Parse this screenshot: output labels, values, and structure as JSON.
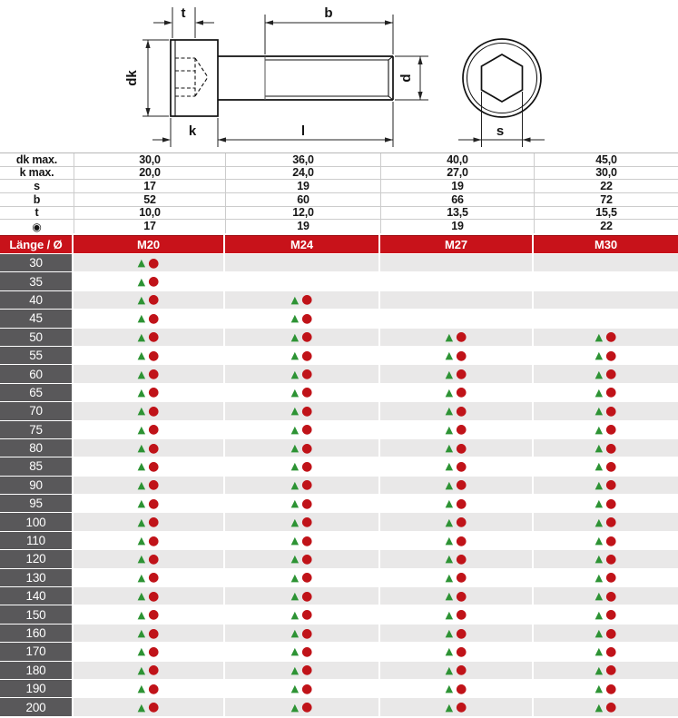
{
  "drawing": {
    "labels": {
      "t": "t",
      "b": "b",
      "dk": "dk",
      "k": "k",
      "l": "l",
      "d": "d",
      "s": "s"
    }
  },
  "dimension_table": {
    "rows": [
      {
        "label": "dk max.",
        "values": [
          "30,0",
          "36,0",
          "40,0",
          "45,0"
        ]
      },
      {
        "label": "k max.",
        "values": [
          "20,0",
          "24,0",
          "27,0",
          "30,0"
        ]
      },
      {
        "label": "s",
        "values": [
          "17",
          "19",
          "19",
          "22"
        ]
      },
      {
        "label": "b",
        "values": [
          "52",
          "60",
          "66",
          "72"
        ]
      },
      {
        "label": "t",
        "values": [
          "10,0",
          "12,0",
          "13,5",
          "15,5"
        ]
      },
      {
        "label": "◉",
        "values": [
          "17",
          "19",
          "19",
          "22"
        ]
      }
    ]
  },
  "size_header": {
    "label": "Länge / Ø",
    "columns": [
      "M20",
      "M24",
      "M27",
      "M30"
    ]
  },
  "availability_table": {
    "markers": {
      "triangle": "▲",
      "circle": "●"
    },
    "rows": [
      {
        "length": "30",
        "cells": [
          true,
          false,
          false,
          false
        ]
      },
      {
        "length": "35",
        "cells": [
          true,
          false,
          false,
          false
        ]
      },
      {
        "length": "40",
        "cells": [
          true,
          true,
          false,
          false
        ]
      },
      {
        "length": "45",
        "cells": [
          true,
          true,
          false,
          false
        ]
      },
      {
        "length": "50",
        "cells": [
          true,
          true,
          true,
          true
        ]
      },
      {
        "length": "55",
        "cells": [
          true,
          true,
          true,
          true
        ]
      },
      {
        "length": "60",
        "cells": [
          true,
          true,
          true,
          true
        ]
      },
      {
        "length": "65",
        "cells": [
          true,
          true,
          true,
          true
        ]
      },
      {
        "length": "70",
        "cells": [
          true,
          true,
          true,
          true
        ]
      },
      {
        "length": "75",
        "cells": [
          true,
          true,
          true,
          true
        ]
      },
      {
        "length": "80",
        "cells": [
          true,
          true,
          true,
          true
        ]
      },
      {
        "length": "85",
        "cells": [
          true,
          true,
          true,
          true
        ]
      },
      {
        "length": "90",
        "cells": [
          true,
          true,
          true,
          true
        ]
      },
      {
        "length": "95",
        "cells": [
          true,
          true,
          true,
          true
        ]
      },
      {
        "length": "100",
        "cells": [
          true,
          true,
          true,
          true
        ]
      },
      {
        "length": "110",
        "cells": [
          true,
          true,
          true,
          true
        ]
      },
      {
        "length": "120",
        "cells": [
          true,
          true,
          true,
          true
        ]
      },
      {
        "length": "130",
        "cells": [
          true,
          true,
          true,
          true
        ]
      },
      {
        "length": "140",
        "cells": [
          true,
          true,
          true,
          true
        ]
      },
      {
        "length": "150",
        "cells": [
          true,
          true,
          true,
          true
        ]
      },
      {
        "length": "160",
        "cells": [
          true,
          true,
          true,
          true
        ]
      },
      {
        "length": "170",
        "cells": [
          true,
          true,
          true,
          true
        ]
      },
      {
        "length": "180",
        "cells": [
          true,
          true,
          true,
          true
        ]
      },
      {
        "length": "190",
        "cells": [
          true,
          true,
          true,
          true
        ]
      },
      {
        "length": "200",
        "cells": [
          true,
          true,
          true,
          true
        ]
      }
    ]
  },
  "colors": {
    "header_red": "#c8121a",
    "length_cell_gray": "#59585a",
    "row_stripe": "#e9e8e8",
    "marker_green": "#2d9334",
    "marker_red": "#c01319"
  }
}
